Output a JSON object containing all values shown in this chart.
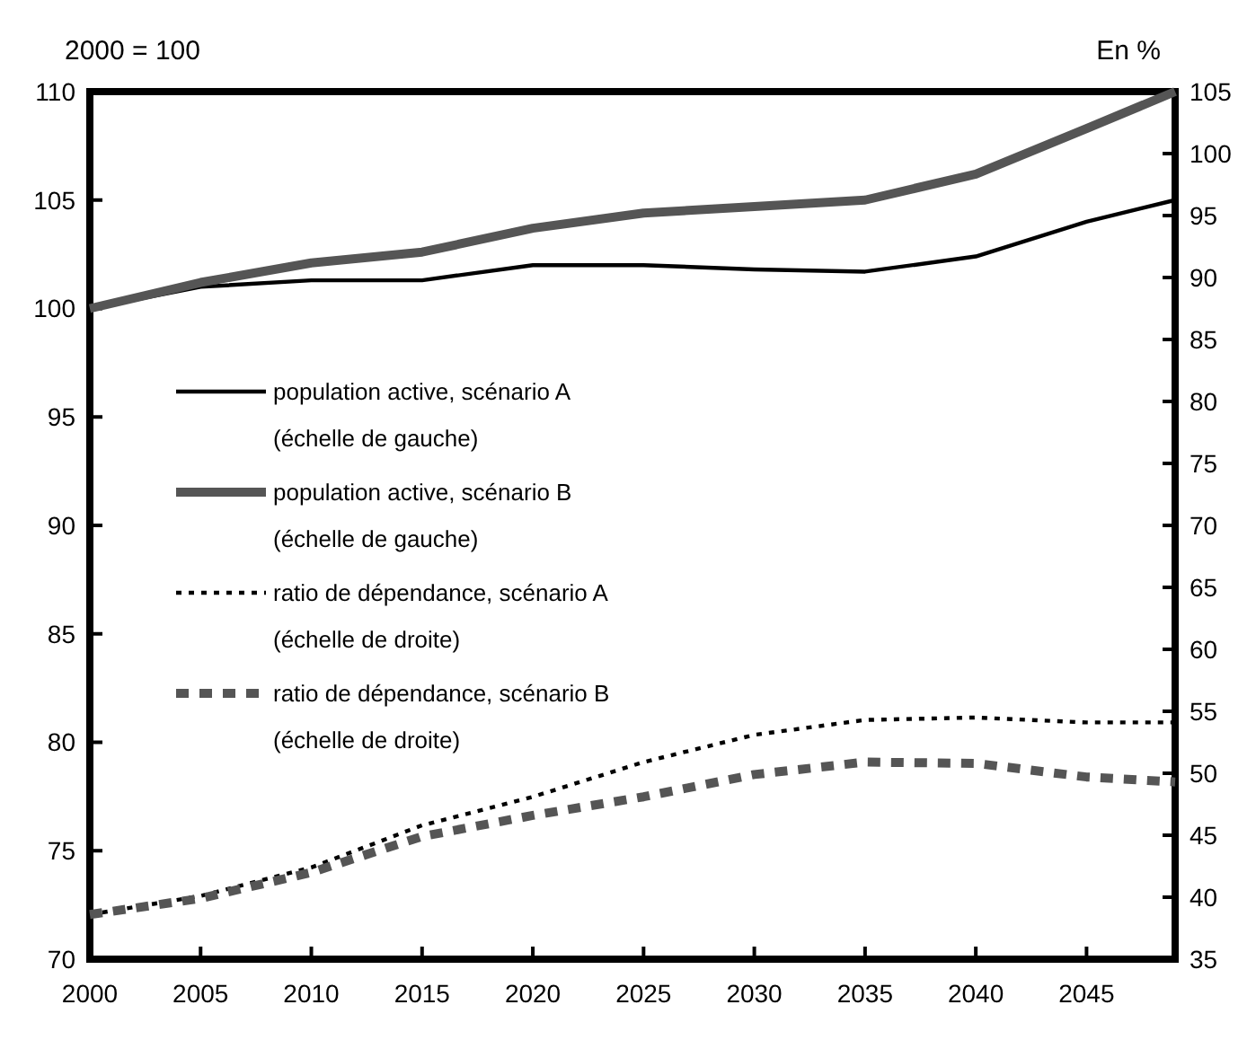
{
  "chart_data": {
    "type": "line",
    "ylabel": "2000 = 100",
    "y2label": "En %",
    "x": [
      2000,
      2005,
      2010,
      2015,
      2020,
      2025,
      2030,
      2035,
      2040,
      2045,
      2049
    ],
    "xlim": [
      2000,
      2049
    ],
    "xticks": [
      2000,
      2005,
      2010,
      2015,
      2020,
      2025,
      2030,
      2035,
      2040,
      2045
    ],
    "ylim": [
      70,
      110
    ],
    "yticks": [
      70,
      75,
      80,
      85,
      90,
      95,
      100,
      105,
      110
    ],
    "y2lim": [
      35,
      105
    ],
    "y2ticks": [
      35,
      40,
      45,
      50,
      55,
      60,
      65,
      70,
      75,
      80,
      85,
      90,
      95,
      100,
      105
    ],
    "grid": false,
    "legend": "left",
    "marker": "none",
    "series": [
      {
        "name": "population active, scénario A\n(échelle de gauche)",
        "color": "#000000",
        "line_style": "solid",
        "values": [
          100,
          101,
          101.3,
          101.3,
          102,
          102,
          101.8,
          101.7,
          102.4,
          104,
          105
        ]
      },
      {
        "name": "population active, scénario B\n(échelle de gauche)",
        "color": "#555555",
        "line_style": "solid",
        "values": [
          100,
          101.2,
          102.1,
          102.6,
          103.7,
          104.4,
          104.7,
          105,
          106.2,
          108.3,
          110
        ]
      },
      {
        "name": "ratio de dépendance, scénario A\n(échelle de droite)",
        "color": "#000000",
        "line_style": "dotted",
        "axis": "y2",
        "values": [
          38.6,
          40.1,
          42.4,
          45.8,
          48.1,
          50.9,
          53.1,
          54.3,
          54.5,
          54.1,
          54.1
        ]
      },
      {
        "name": "ratio de dépendance, scénario B\n(échelle de droite)",
        "color": "#555555",
        "line_style": "dashed",
        "axis": "y2",
        "values": [
          38.6,
          39.9,
          42,
          44.9,
          46.6,
          48.1,
          49.9,
          50.9,
          50.8,
          49.7,
          49.3
        ]
      }
    ]
  }
}
